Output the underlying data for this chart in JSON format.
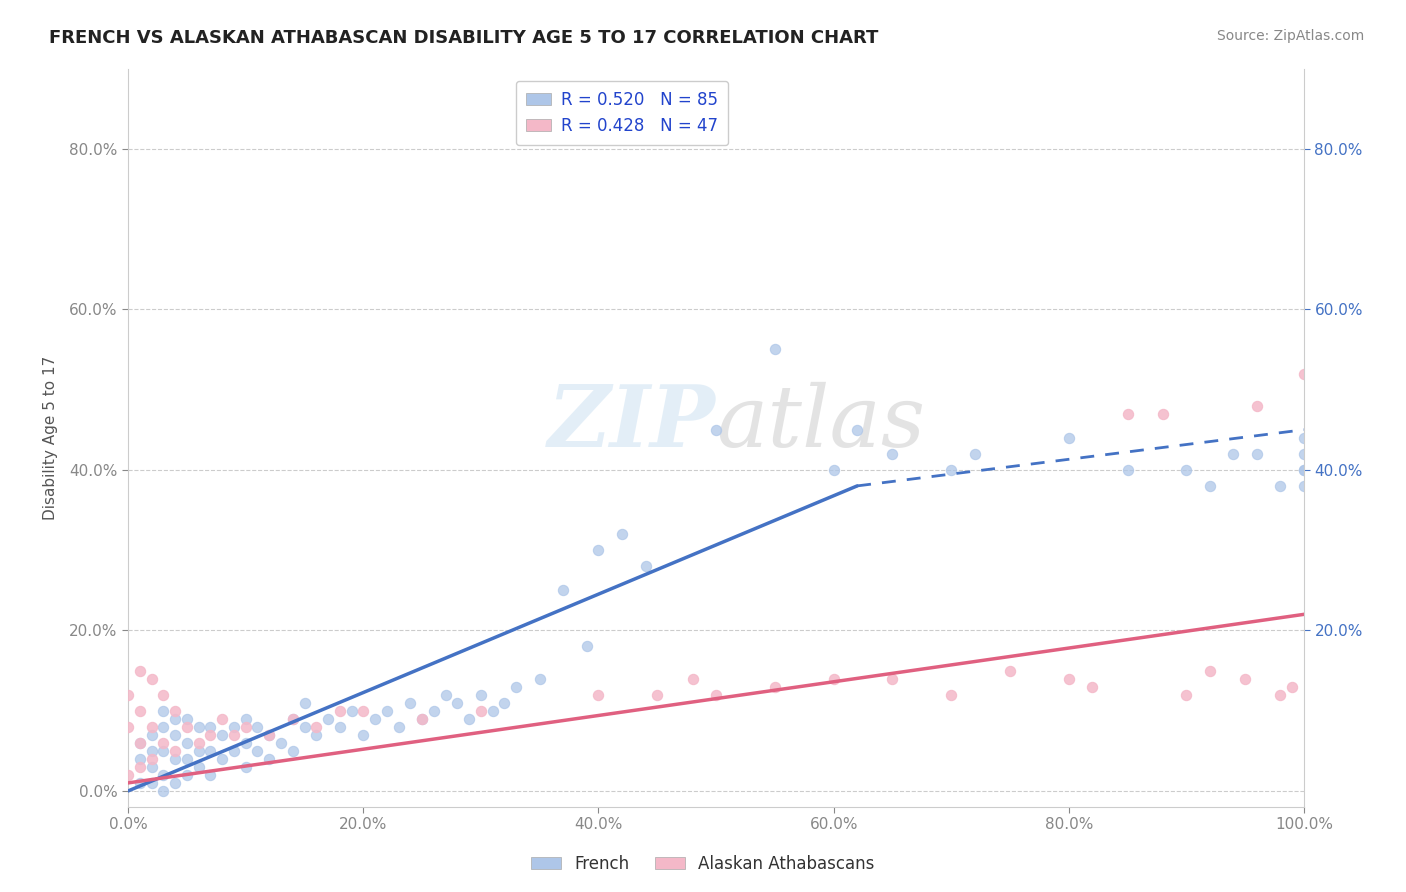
{
  "title": "FRENCH VS ALASKAN ATHABASCAN DISABILITY AGE 5 TO 17 CORRELATION CHART",
  "source": "Source: ZipAtlas.com",
  "ylabel": "Disability Age 5 to 17",
  "xlabel": "",
  "xlim": [
    0.0,
    1.0
  ],
  "ylim": [
    -0.02,
    0.9
  ],
  "xtick_labels": [
    "0.0%",
    "20.0%",
    "40.0%",
    "60.0%",
    "80.0%",
    "100.0%"
  ],
  "xtick_values": [
    0.0,
    0.2,
    0.4,
    0.6,
    0.8,
    1.0
  ],
  "ytick_labels": [
    "0.0%",
    "20.0%",
    "40.0%",
    "60.0%",
    "80.0%"
  ],
  "ytick_values": [
    0.0,
    0.2,
    0.4,
    0.6,
    0.8
  ],
  "french_color": "#aec6e8",
  "french_line_color": "#4472c4",
  "athabascan_color": "#f4b8c8",
  "athabascan_line_color": "#e06080",
  "right_tick_color": "#4472c4",
  "french_R": 0.52,
  "french_N": 85,
  "athabascan_R": 0.428,
  "athabascan_N": 47,
  "legend_label_1": "R = 0.520   N = 85",
  "legend_label_2": "R = 0.428   N = 47",
  "legend_labels_bottom": [
    "French",
    "Alaskan Athabascans"
  ],
  "watermark": "ZIPatlas",
  "french_scatter_x": [
    0.01,
    0.01,
    0.01,
    0.02,
    0.02,
    0.02,
    0.02,
    0.03,
    0.03,
    0.03,
    0.03,
    0.03,
    0.04,
    0.04,
    0.04,
    0.04,
    0.05,
    0.05,
    0.05,
    0.05,
    0.06,
    0.06,
    0.06,
    0.07,
    0.07,
    0.07,
    0.08,
    0.08,
    0.09,
    0.09,
    0.1,
    0.1,
    0.1,
    0.11,
    0.11,
    0.12,
    0.12,
    0.13,
    0.14,
    0.14,
    0.15,
    0.15,
    0.16,
    0.17,
    0.18,
    0.19,
    0.2,
    0.21,
    0.22,
    0.23,
    0.24,
    0.25,
    0.26,
    0.27,
    0.28,
    0.29,
    0.3,
    0.31,
    0.32,
    0.33,
    0.35,
    0.37,
    0.39,
    0.4,
    0.42,
    0.44,
    0.5,
    0.55,
    0.6,
    0.62,
    0.65,
    0.7,
    0.72,
    0.8,
    0.85,
    0.9,
    0.92,
    0.94,
    0.96,
    0.98,
    1.0,
    1.0,
    1.0,
    1.0,
    1.0
  ],
  "french_scatter_y": [
    0.01,
    0.04,
    0.06,
    0.01,
    0.03,
    0.05,
    0.07,
    0.0,
    0.02,
    0.05,
    0.08,
    0.1,
    0.01,
    0.04,
    0.07,
    0.09,
    0.02,
    0.04,
    0.06,
    0.09,
    0.03,
    0.05,
    0.08,
    0.02,
    0.05,
    0.08,
    0.04,
    0.07,
    0.05,
    0.08,
    0.03,
    0.06,
    0.09,
    0.05,
    0.08,
    0.04,
    0.07,
    0.06,
    0.05,
    0.09,
    0.08,
    0.11,
    0.07,
    0.09,
    0.08,
    0.1,
    0.07,
    0.09,
    0.1,
    0.08,
    0.11,
    0.09,
    0.1,
    0.12,
    0.11,
    0.09,
    0.12,
    0.1,
    0.11,
    0.13,
    0.14,
    0.25,
    0.18,
    0.3,
    0.32,
    0.28,
    0.45,
    0.55,
    0.4,
    0.45,
    0.42,
    0.4,
    0.42,
    0.44,
    0.4,
    0.4,
    0.38,
    0.42,
    0.42,
    0.38,
    0.38,
    0.4,
    0.42,
    0.4,
    0.44
  ],
  "athabascan_scatter_x": [
    0.0,
    0.0,
    0.0,
    0.01,
    0.01,
    0.01,
    0.01,
    0.02,
    0.02,
    0.02,
    0.03,
    0.03,
    0.04,
    0.04,
    0.05,
    0.06,
    0.07,
    0.08,
    0.09,
    0.1,
    0.12,
    0.14,
    0.16,
    0.18,
    0.2,
    0.25,
    0.3,
    0.4,
    0.45,
    0.48,
    0.5,
    0.55,
    0.6,
    0.65,
    0.7,
    0.75,
    0.8,
    0.82,
    0.85,
    0.88,
    0.9,
    0.92,
    0.95,
    0.96,
    0.98,
    0.99,
    1.0
  ],
  "athabascan_scatter_y": [
    0.02,
    0.08,
    0.12,
    0.03,
    0.06,
    0.1,
    0.15,
    0.04,
    0.08,
    0.14,
    0.06,
    0.12,
    0.05,
    0.1,
    0.08,
    0.06,
    0.07,
    0.09,
    0.07,
    0.08,
    0.07,
    0.09,
    0.08,
    0.1,
    0.1,
    0.09,
    0.1,
    0.12,
    0.12,
    0.14,
    0.12,
    0.13,
    0.14,
    0.14,
    0.12,
    0.15,
    0.14,
    0.13,
    0.47,
    0.47,
    0.12,
    0.15,
    0.14,
    0.48,
    0.12,
    0.13,
    0.52
  ],
  "fr_line_x0": 0.0,
  "fr_line_y0": 0.0,
  "fr_line_x1": 0.62,
  "fr_line_y1": 0.38,
  "fr_line_dash_x0": 0.62,
  "fr_line_dash_y0": 0.38,
  "fr_line_dash_x1": 1.0,
  "fr_line_dash_y1": 0.45,
  "ath_line_x0": 0.0,
  "ath_line_y0": 0.01,
  "ath_line_x1": 1.0,
  "ath_line_y1": 0.22
}
